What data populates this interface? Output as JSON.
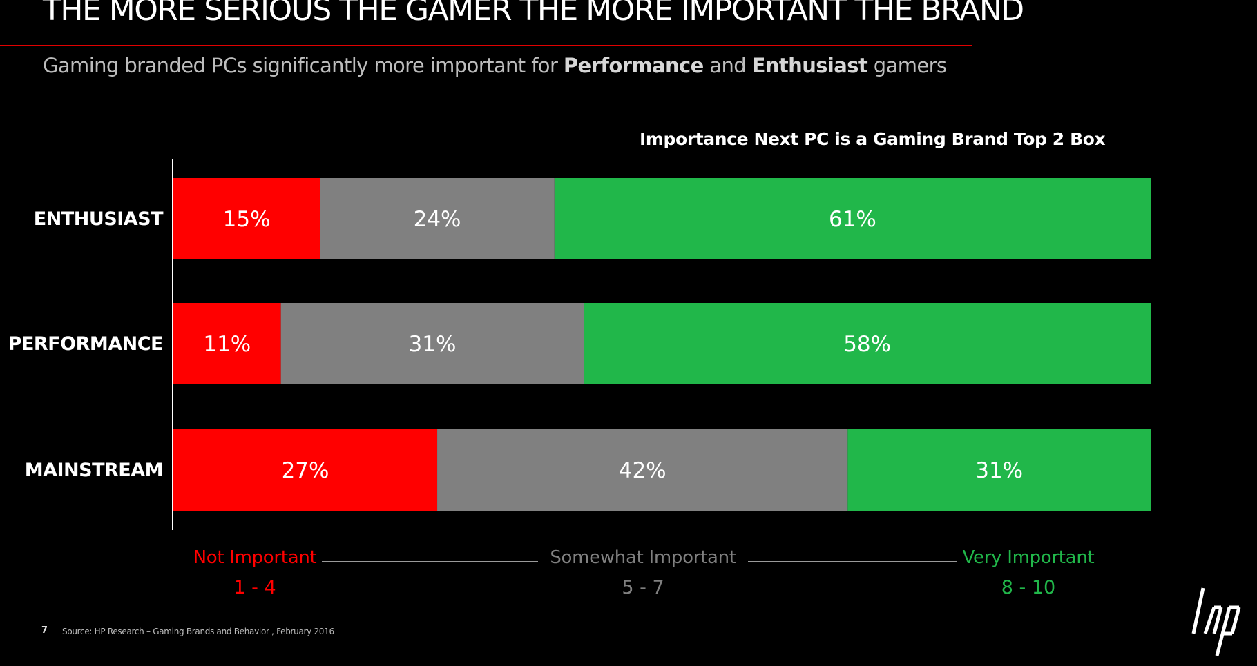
{
  "slide": {
    "title": "THE MORE SERIOUS THE GAMER THE MORE IMPORTANT THE BRAND",
    "subtitle": {
      "prefix": "Gaming branded PCs significantly more important for ",
      "bold1": "Performance",
      "middle": " and ",
      "bold2": "Enthusiast",
      "suffix": " gamers"
    },
    "page_number": "7",
    "source": "Source: HP Research – Gaming Brands and Behavior ,  February 2016",
    "logo_icon": "hp-logo-icon"
  },
  "chart_data": {
    "type": "bar",
    "orientation": "horizontal",
    "stacked": true,
    "title": "Importance Next PC is a Gaming Brand Top 2 Box",
    "categories": [
      "ENTHUSIAST",
      "PERFORMANCE",
      "MAINSTREAM"
    ],
    "series": [
      {
        "name": "Not Important",
        "range": "1 - 4",
        "color": "#ff0000",
        "values": [
          15,
          11,
          27
        ]
      },
      {
        "name": "Somewhat Important",
        "range": "5 - 7",
        "color": "#808080",
        "values": [
          24,
          31,
          42
        ]
      },
      {
        "name": "Very Important",
        "range": "8 - 10",
        "color": "#21b74a",
        "values": [
          61,
          58,
          31
        ]
      }
    ],
    "value_suffix": "%",
    "xlim": [
      0,
      100
    ],
    "grid": false,
    "legend_position": "bottom"
  },
  "colors": {
    "label_gray": "#9a9a9a",
    "background": "#000000",
    "accent_red": "#e00000"
  }
}
